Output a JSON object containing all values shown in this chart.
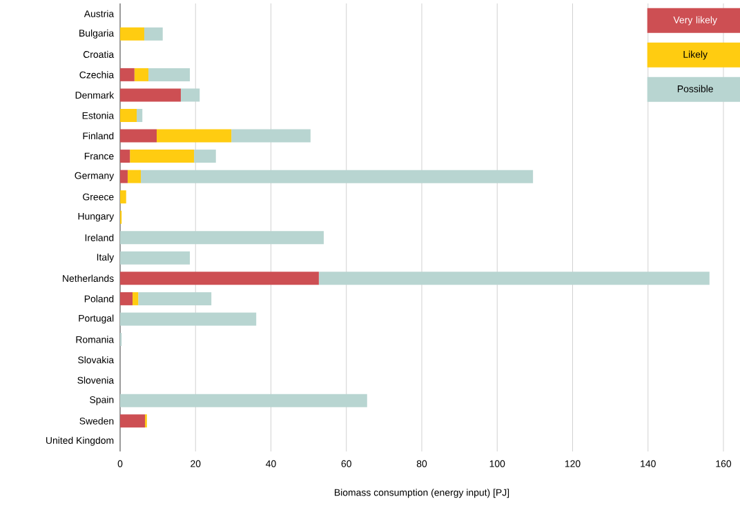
{
  "chart_data": {
    "type": "bar",
    "orientation": "horizontal",
    "stacked": true,
    "categories": [
      "Austria",
      "Bulgaria",
      "Croatia",
      "Czechia",
      "Denmark",
      "Estonia",
      "Finland",
      "France",
      "Germany",
      "Greece",
      "Hungary",
      "Ireland",
      "Italy",
      "Netherlands",
      "Poland",
      "Portugal",
      "Romania",
      "Slovakia",
      "Slovenia",
      "Spain",
      "Sweden",
      "United Kingdom"
    ],
    "series": [
      {
        "name": "Very likely",
        "color": "#cd4f53",
        "values": [
          0,
          0,
          0,
          3.8,
          16.1,
          0,
          9.7,
          2.6,
          2.0,
          0,
          0,
          0,
          0,
          52.7,
          3.3,
          0,
          0,
          0,
          0,
          0,
          6.6,
          0
        ]
      },
      {
        "name": "Likely",
        "color": "#ffcc11",
        "values": [
          0,
          6.4,
          0,
          3.7,
          0,
          4.4,
          19.8,
          17.0,
          3.5,
          1.6,
          0.4,
          0,
          0,
          0,
          1.5,
          0,
          0,
          0,
          0,
          0,
          0.5,
          0
        ]
      },
      {
        "name": "Possible",
        "color": "#b8d5d1",
        "values": [
          0,
          4.9,
          0,
          11.0,
          5.0,
          1.5,
          21.0,
          5.8,
          104.0,
          0,
          0,
          54.0,
          18.5,
          103.6,
          19.4,
          36.1,
          0.4,
          0,
          0,
          65.5,
          0,
          0
        ]
      }
    ],
    "xlabel": "Biomass consumption (energy input) [PJ]",
    "xlim": [
      0,
      160
    ],
    "xticks": [
      0,
      20,
      40,
      60,
      80,
      100,
      120,
      140,
      160
    ],
    "grid": "x",
    "legend": "top right"
  }
}
